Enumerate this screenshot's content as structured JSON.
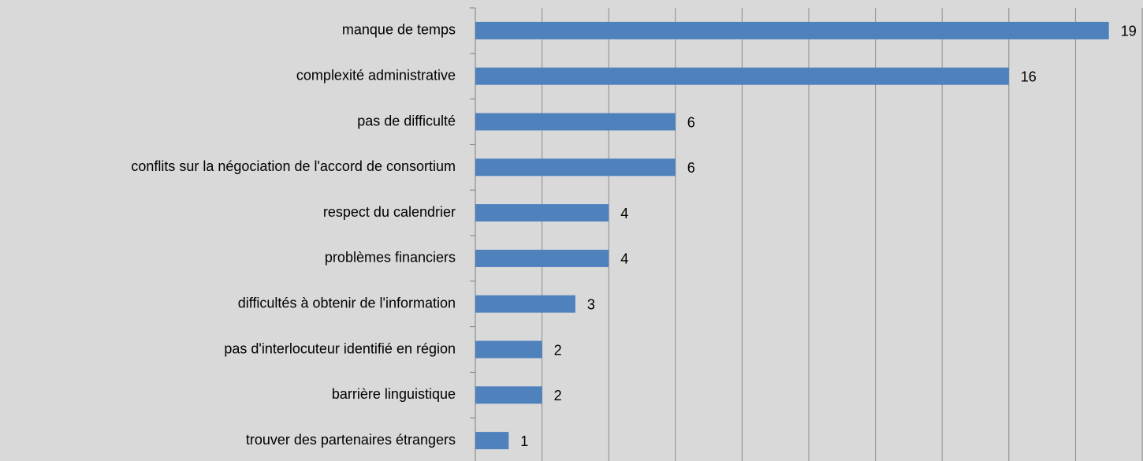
{
  "chart_data": {
    "type": "bar",
    "orientation": "horizontal",
    "categories": [
      "manque de temps",
      "complexité administrative",
      "pas de difficulté",
      "conflits sur la négociation de l'accord de consortium",
      "respect du calendrier",
      "problèmes financiers",
      "difficultés à obtenir de l'information",
      "pas d'interlocuteur identifié en région",
      "barrière linguistique",
      "trouver des partenaires étrangers"
    ],
    "values": [
      19,
      16,
      6,
      6,
      4,
      4,
      3,
      2,
      2,
      1
    ],
    "color": "#4f81bd",
    "xlim": [
      0,
      20
    ],
    "xticks": [
      0,
      2,
      4,
      6,
      8,
      10,
      12,
      14,
      16,
      18,
      20
    ],
    "grid": true
  }
}
